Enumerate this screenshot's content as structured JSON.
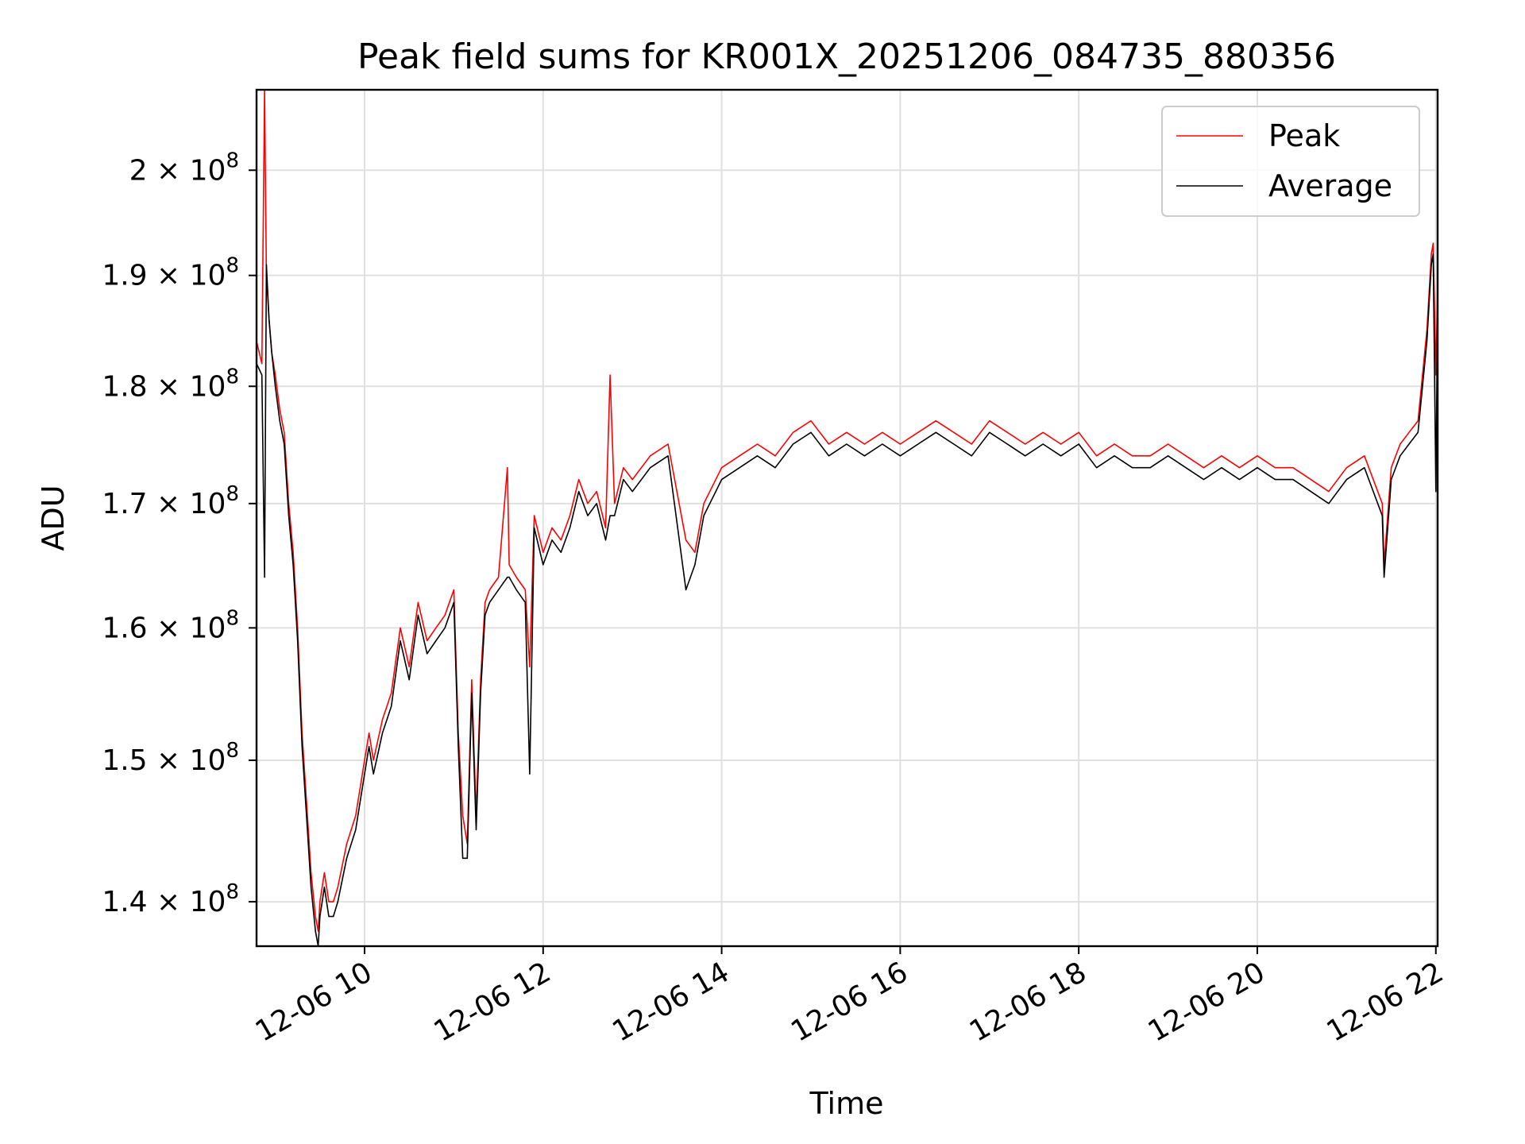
{
  "chart_data": {
    "type": "line",
    "title": "Peak field sums for KR001X_20251206_084735_880356",
    "xlabel": "Time",
    "ylabel": "ADU",
    "yscale": "log",
    "ylim": [
      137000000,
      208000000
    ],
    "xlim_hours": [
      8.79,
      22.02
    ],
    "grid": true,
    "legend_position": "top-right",
    "x_ticks": [
      {
        "label": "12-06 10",
        "hour": 10
      },
      {
        "label": "12-06 12",
        "hour": 12
      },
      {
        "label": "12-06 14",
        "hour": 14
      },
      {
        "label": "12-06 16",
        "hour": 16
      },
      {
        "label": "12-06 18",
        "hour": 18
      },
      {
        "label": "12-06 20",
        "hour": 20
      },
      {
        "label": "12-06 22",
        "hour": 22
      }
    ],
    "y_ticks": [
      {
        "mantissa": "2",
        "value": 200000000
      },
      {
        "mantissa": "1.9",
        "value": 190000000
      },
      {
        "mantissa": "1.8",
        "value": 180000000
      },
      {
        "mantissa": "1.7",
        "value": 170000000
      },
      {
        "mantissa": "1.6",
        "value": 160000000
      },
      {
        "mantissa": "1.5",
        "value": 150000000
      },
      {
        "mantissa": "1.4",
        "value": 140000000
      }
    ],
    "y_tick_base": "× 10",
    "y_tick_exponent": "8",
    "series": [
      {
        "name": "Peak",
        "color": "#ff0000",
        "x": [
          8.79,
          8.85,
          8.88,
          8.9,
          8.93,
          8.96,
          9.0,
          9.05,
          9.1,
          9.15,
          9.2,
          9.25,
          9.3,
          9.35,
          9.4,
          9.45,
          9.48,
          9.5,
          9.55,
          9.6,
          9.65,
          9.7,
          9.8,
          9.9,
          10.0,
          10.05,
          10.1,
          10.2,
          10.3,
          10.4,
          10.5,
          10.6,
          10.7,
          10.8,
          10.9,
          11.0,
          11.05,
          11.1,
          11.15,
          11.2,
          11.25,
          11.3,
          11.35,
          11.4,
          11.5,
          11.6,
          11.62,
          11.7,
          11.8,
          11.85,
          11.9,
          12.0,
          12.1,
          12.2,
          12.3,
          12.4,
          12.5,
          12.6,
          12.7,
          12.75,
          12.8,
          12.9,
          13.0,
          13.2,
          13.4,
          13.6,
          13.7,
          13.8,
          14.0,
          14.2,
          14.4,
          14.6,
          14.8,
          15.0,
          15.2,
          15.4,
          15.6,
          15.8,
          16.0,
          16.2,
          16.4,
          16.6,
          16.8,
          17.0,
          17.2,
          17.4,
          17.6,
          17.8,
          18.0,
          18.2,
          18.4,
          18.6,
          18.8,
          19.0,
          19.2,
          19.4,
          19.6,
          19.8,
          20.0,
          20.2,
          20.4,
          20.6,
          20.8,
          21.0,
          21.2,
          21.4,
          21.42,
          21.5,
          21.6,
          21.7,
          21.8,
          21.9,
          21.95,
          21.97,
          22.0,
          22.02
        ],
        "y": [
          184000000,
          182000000,
          208000000,
          190000000,
          186000000,
          183000000,
          181000000,
          178000000,
          176000000,
          170000000,
          166000000,
          160000000,
          152000000,
          147000000,
          142000000,
          139000000,
          138000000,
          140000000,
          142000000,
          140000000,
          140000000,
          141000000,
          144000000,
          146000000,
          150000000,
          152000000,
          150000000,
          153000000,
          155000000,
          160000000,
          157000000,
          162000000,
          159000000,
          160000000,
          161000000,
          163000000,
          152000000,
          146000000,
          144000000,
          156000000,
          146000000,
          156000000,
          162000000,
          163000000,
          164000000,
          173000000,
          165000000,
          164000000,
          163000000,
          157000000,
          169000000,
          166000000,
          168000000,
          167000000,
          169000000,
          172000000,
          170000000,
          171000000,
          168000000,
          181000000,
          170000000,
          173000000,
          172000000,
          174000000,
          175000000,
          167000000,
          166000000,
          170000000,
          173000000,
          174000000,
          175000000,
          174000000,
          176000000,
          177000000,
          175000000,
          176000000,
          175000000,
          176000000,
          175000000,
          176000000,
          177000000,
          176000000,
          175000000,
          177000000,
          176000000,
          175000000,
          176000000,
          175000000,
          176000000,
          174000000,
          175000000,
          174000000,
          174000000,
          175000000,
          174000000,
          173000000,
          174000000,
          173000000,
          174000000,
          173000000,
          173000000,
          172000000,
          171000000,
          173000000,
          174000000,
          170000000,
          165000000,
          173000000,
          175000000,
          176000000,
          177000000,
          185000000,
          192000000,
          193000000,
          181000000,
          189000000
        ]
      },
      {
        "name": "Average",
        "color": "#000000",
        "x": [
          8.79,
          8.85,
          8.88,
          8.9,
          8.93,
          8.96,
          9.0,
          9.05,
          9.1,
          9.15,
          9.2,
          9.25,
          9.3,
          9.35,
          9.4,
          9.45,
          9.48,
          9.5,
          9.55,
          9.6,
          9.65,
          9.7,
          9.8,
          9.9,
          10.0,
          10.05,
          10.1,
          10.2,
          10.3,
          10.4,
          10.5,
          10.6,
          10.7,
          10.8,
          10.9,
          11.0,
          11.05,
          11.1,
          11.15,
          11.2,
          11.25,
          11.3,
          11.35,
          11.4,
          11.5,
          11.6,
          11.62,
          11.7,
          11.8,
          11.85,
          11.9,
          12.0,
          12.1,
          12.2,
          12.3,
          12.4,
          12.5,
          12.6,
          12.7,
          12.75,
          12.8,
          12.9,
          13.0,
          13.2,
          13.4,
          13.6,
          13.7,
          13.8,
          14.0,
          14.2,
          14.4,
          14.6,
          14.8,
          15.0,
          15.2,
          15.4,
          15.6,
          15.8,
          16.0,
          16.2,
          16.4,
          16.6,
          16.8,
          17.0,
          17.2,
          17.4,
          17.6,
          17.8,
          18.0,
          18.2,
          18.4,
          18.6,
          18.8,
          19.0,
          19.2,
          19.4,
          19.6,
          19.8,
          20.0,
          20.2,
          20.4,
          20.6,
          20.8,
          21.0,
          21.2,
          21.4,
          21.42,
          21.5,
          21.6,
          21.7,
          21.8,
          21.9,
          21.95,
          21.97,
          22.0,
          22.02
        ],
        "y": [
          182000000,
          181000000,
          164000000,
          191000000,
          186000000,
          183000000,
          180000000,
          177000000,
          175000000,
          169000000,
          165000000,
          159000000,
          151000000,
          146000000,
          141000000,
          138000000,
          137000000,
          139000000,
          141000000,
          139000000,
          139000000,
          140000000,
          143000000,
          145000000,
          149000000,
          151000000,
          149000000,
          152000000,
          154000000,
          159000000,
          156000000,
          161000000,
          158000000,
          159000000,
          160000000,
          162000000,
          151000000,
          143000000,
          143000000,
          155000000,
          145000000,
          155000000,
          161000000,
          162000000,
          163000000,
          164000000,
          164000000,
          163000000,
          162000000,
          149000000,
          168000000,
          165000000,
          167000000,
          166000000,
          168000000,
          171000000,
          169000000,
          170000000,
          167000000,
          169000000,
          169000000,
          172000000,
          171000000,
          173000000,
          174000000,
          163000000,
          165000000,
          169000000,
          172000000,
          173000000,
          174000000,
          173000000,
          175000000,
          176000000,
          174000000,
          175000000,
          174000000,
          175000000,
          174000000,
          175000000,
          176000000,
          175000000,
          174000000,
          176000000,
          175000000,
          174000000,
          175000000,
          174000000,
          175000000,
          173000000,
          174000000,
          173000000,
          173000000,
          174000000,
          173000000,
          172000000,
          173000000,
          172000000,
          173000000,
          172000000,
          172000000,
          171000000,
          170000000,
          172000000,
          173000000,
          169000000,
          164000000,
          172000000,
          174000000,
          175000000,
          176000000,
          184000000,
          191000000,
          192000000,
          171000000,
          188000000
        ]
      }
    ]
  }
}
